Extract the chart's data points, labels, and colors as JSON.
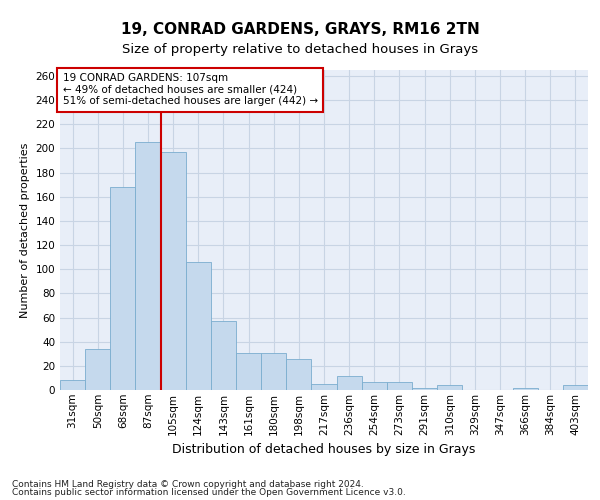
{
  "title1": "19, CONRAD GARDENS, GRAYS, RM16 2TN",
  "title2": "Size of property relative to detached houses in Grays",
  "xlabel": "Distribution of detached houses by size in Grays",
  "ylabel": "Number of detached properties",
  "categories": [
    "31sqm",
    "50sqm",
    "68sqm",
    "87sqm",
    "105sqm",
    "124sqm",
    "143sqm",
    "161sqm",
    "180sqm",
    "198sqm",
    "217sqm",
    "236sqm",
    "254sqm",
    "273sqm",
    "291sqm",
    "310sqm",
    "329sqm",
    "347sqm",
    "366sqm",
    "384sqm",
    "403sqm"
  ],
  "values": [
    8,
    34,
    168,
    205,
    197,
    106,
    57,
    31,
    31,
    26,
    5,
    12,
    7,
    7,
    2,
    4,
    0,
    0,
    2,
    0,
    4
  ],
  "bar_color": "#c5d9ed",
  "bar_edge_color": "#7aadcf",
  "vline_x_pos": 4.0,
  "vline_color": "#cc0000",
  "annotation_text": "19 CONRAD GARDENS: 107sqm\n← 49% of detached houses are smaller (424)\n51% of semi-detached houses are larger (442) →",
  "annotation_box_color": "#ffffff",
  "annotation_box_edge": "#cc0000",
  "ylim": [
    0,
    265
  ],
  "yticks": [
    0,
    20,
    40,
    60,
    80,
    100,
    120,
    140,
    160,
    180,
    200,
    220,
    240,
    260
  ],
  "grid_color": "#c8d4e4",
  "bg_color": "#e8eef8",
  "footer1": "Contains HM Land Registry data © Crown copyright and database right 2024.",
  "footer2": "Contains public sector information licensed under the Open Government Licence v3.0.",
  "title1_fontsize": 11,
  "title2_fontsize": 9.5,
  "xlabel_fontsize": 9,
  "ylabel_fontsize": 8,
  "tick_fontsize": 7.5,
  "annot_fontsize": 7.5,
  "footer_fontsize": 6.5
}
